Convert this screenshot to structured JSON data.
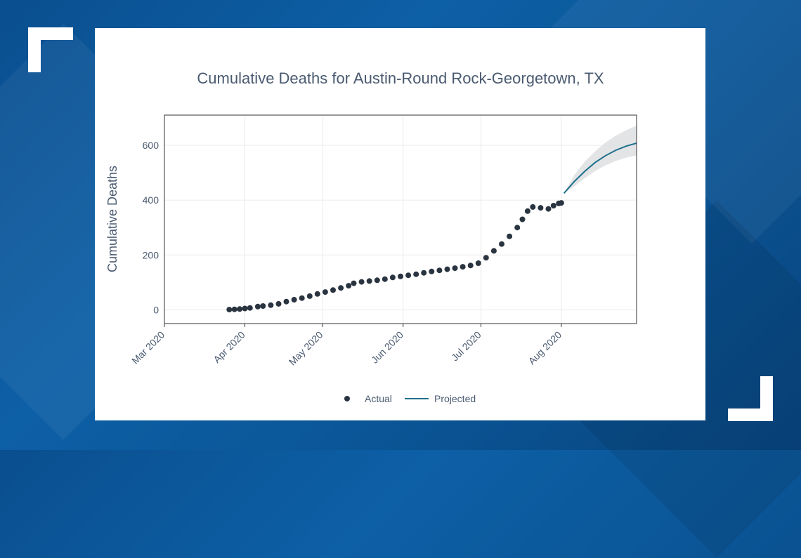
{
  "colors": {
    "background": "#0b5799",
    "card": "#ffffff",
    "actual": "#2a3440",
    "projected": "#1f6f8b",
    "band": "#d9dbde",
    "text": "#4a5a70",
    "grid": "#ebebeb"
  },
  "chart_data": {
    "type": "scatter",
    "title": "Cumulative Deaths for Austin-Round Rock-Georgetown, TX",
    "xlabel": "",
    "ylabel": "Cumulative Deaths",
    "ylim": [
      -50,
      710
    ],
    "yticks": [
      0,
      200,
      400,
      600
    ],
    "xlim": [
      "2020-03-01",
      "2020-08-30"
    ],
    "xticks": [
      {
        "date": "2020-03-01",
        "label": "Mar 2020"
      },
      {
        "date": "2020-04-01",
        "label": "Apr 2020"
      },
      {
        "date": "2020-05-01",
        "label": "May 2020"
      },
      {
        "date": "2020-06-01",
        "label": "Jun 2020"
      },
      {
        "date": "2020-07-01",
        "label": "Jul 2020"
      },
      {
        "date": "2020-08-01",
        "label": "Aug 2020"
      }
    ],
    "legend": {
      "placement": "bottom",
      "items": [
        {
          "name": "Actual",
          "marker": "dot"
        },
        {
          "name": "Projected",
          "marker": "line"
        }
      ]
    },
    "series": [
      {
        "name": "Actual",
        "kind": "points",
        "x": [
          "2020-03-26",
          "2020-03-28",
          "2020-03-30",
          "2020-04-01",
          "2020-04-03",
          "2020-04-06",
          "2020-04-08",
          "2020-04-11",
          "2020-04-14",
          "2020-04-17",
          "2020-04-20",
          "2020-04-23",
          "2020-04-26",
          "2020-04-29",
          "2020-05-02",
          "2020-05-05",
          "2020-05-08",
          "2020-05-11",
          "2020-05-13",
          "2020-05-16",
          "2020-05-19",
          "2020-05-22",
          "2020-05-25",
          "2020-05-28",
          "2020-05-31",
          "2020-06-03",
          "2020-06-06",
          "2020-06-09",
          "2020-06-12",
          "2020-06-15",
          "2020-06-18",
          "2020-06-21",
          "2020-06-24",
          "2020-06-27",
          "2020-06-30",
          "2020-07-03",
          "2020-07-06",
          "2020-07-09",
          "2020-07-12",
          "2020-07-15",
          "2020-07-17",
          "2020-07-19",
          "2020-07-21",
          "2020-07-24",
          "2020-07-27",
          "2020-07-29",
          "2020-07-31",
          "2020-08-01"
        ],
        "y": [
          1,
          2,
          3,
          5,
          7,
          12,
          14,
          17,
          22,
          30,
          37,
          43,
          50,
          58,
          65,
          72,
          80,
          88,
          97,
          102,
          105,
          108,
          112,
          118,
          122,
          126,
          130,
          135,
          140,
          144,
          148,
          152,
          157,
          162,
          170,
          190,
          215,
          240,
          268,
          300,
          330,
          360,
          375,
          372,
          368,
          380,
          388,
          390
        ]
      },
      {
        "name": "Projected",
        "kind": "line",
        "x": [
          "2020-08-02",
          "2020-08-06",
          "2020-08-10",
          "2020-08-14",
          "2020-08-18",
          "2020-08-22",
          "2020-08-26",
          "2020-08-30"
        ],
        "y": [
          425,
          468,
          505,
          537,
          562,
          582,
          597,
          608
        ],
        "lower": [
          425,
          450,
          480,
          506,
          527,
          543,
          555,
          563
        ],
        "upper": [
          425,
          492,
          540,
          578,
          610,
          635,
          655,
          672
        ]
      }
    ]
  }
}
